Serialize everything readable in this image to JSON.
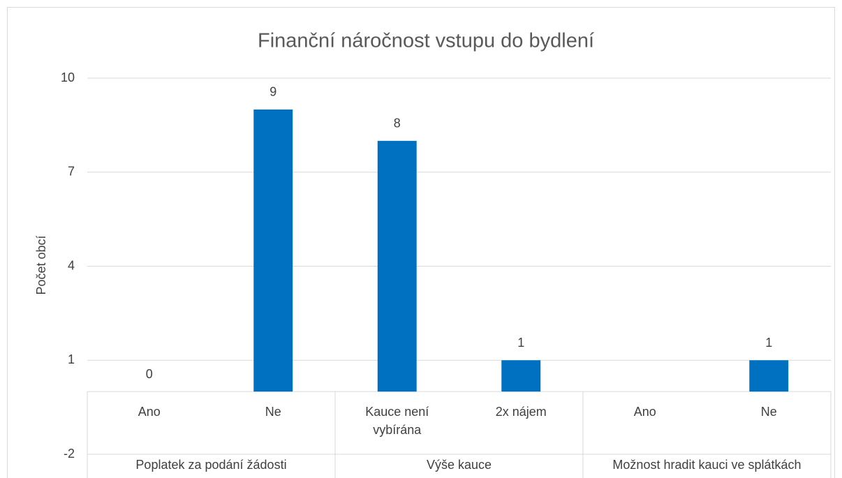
{
  "chart_data": {
    "type": "bar",
    "title": "Finanční náročnost vstupu do bydlení",
    "y_label": "Počet obcí",
    "groups": [
      {
        "name": "Poplatek za podání žádosti",
        "categories": [
          "Ano",
          "Ne"
        ]
      },
      {
        "name": "Výše kauce",
        "categories": [
          "Kauce není vybírána",
          "2x nájem"
        ]
      },
      {
        "name": "Možnost hradit kauci ve splátkách",
        "categories": [
          "Ano",
          "Ne"
        ]
      }
    ],
    "values": [
      0,
      9,
      8,
      1,
      null,
      1
    ],
    "color": "#0070c0",
    "ylim": [
      -2,
      10
    ],
    "yticks": [
      -2,
      1,
      4,
      7,
      10
    ],
    "grid": true
  }
}
